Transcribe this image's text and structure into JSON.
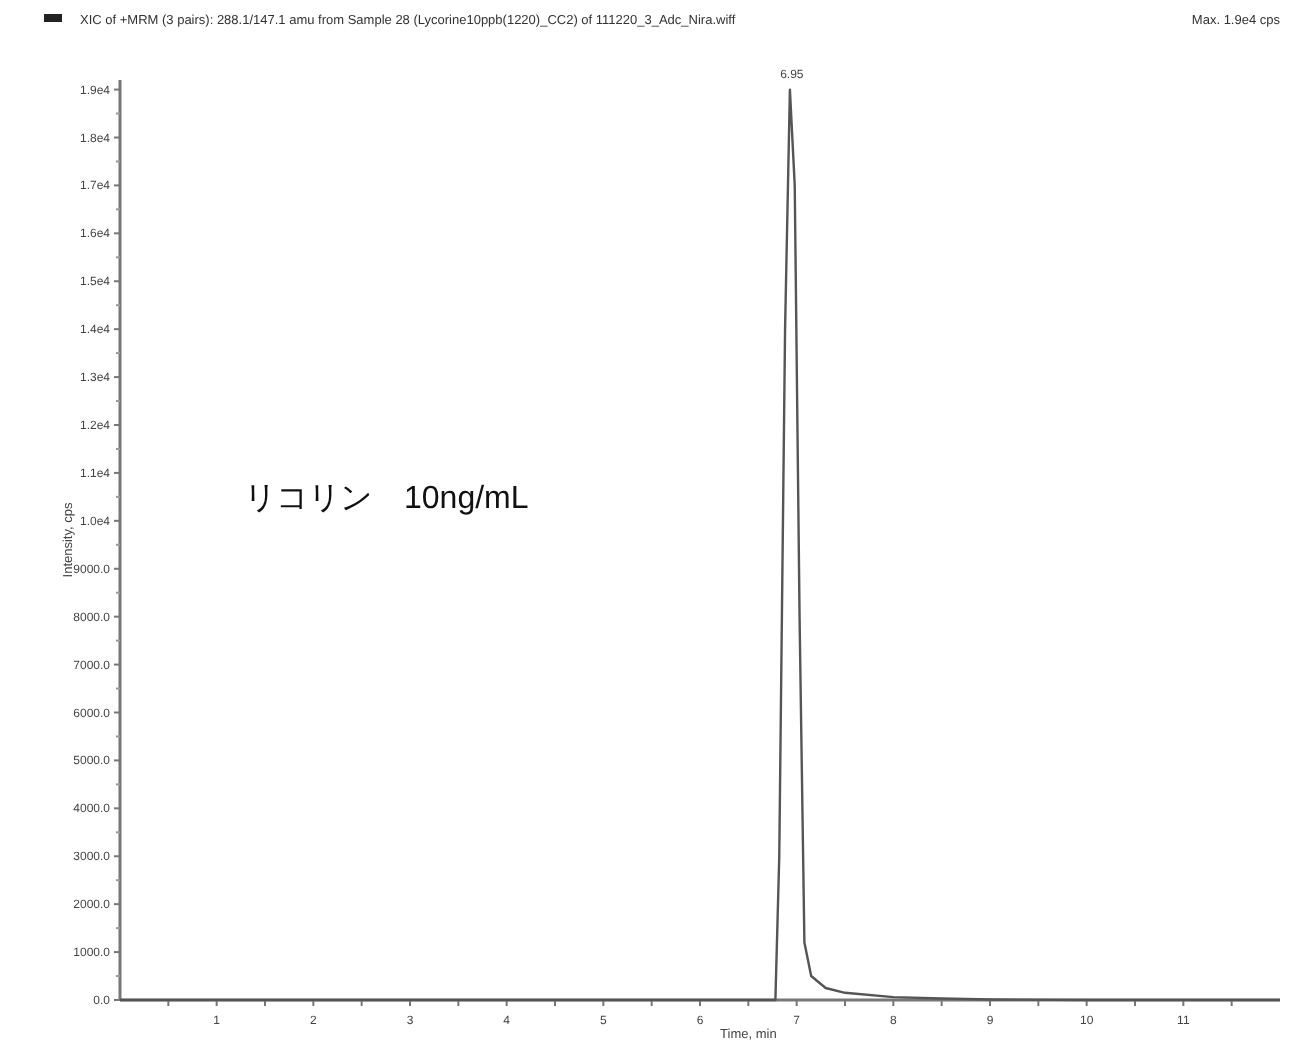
{
  "chart_data": {
    "type": "line",
    "title": "XIC of +MRM (3 pairs): 288.1/147.1 amu from Sample 28 (Lycorine10ppb(1220)_CC2) of 111220_3_Adc_Nira.wiff",
    "subtitle": "Max. 1.9e4 cps",
    "xlabel": "Time, min",
    "ylabel": "Intensity, cps",
    "annotations": [
      "リコリン　10ng/mL",
      {
        "text": "6.95",
        "x": 6.95,
        "y": 19000
      }
    ],
    "series": [
      {
        "color": "#555555",
        "x": [
          0,
          6.78,
          6.82,
          6.88,
          6.93,
          6.98,
          7.03,
          7.08,
          7.15,
          7.3,
          7.5,
          8.0,
          8.5,
          9.0,
          10.0,
          12.0
        ],
        "values": [
          0,
          0,
          3000,
          14000,
          19000,
          17000,
          8000,
          1200,
          500,
          250,
          150,
          60,
          30,
          10,
          0,
          0
        ]
      }
    ],
    "xlim": [
      0,
      12
    ],
    "ylim": [
      0,
      19200
    ],
    "xticks": [
      {
        "value": 0.5,
        "label": null
      },
      1,
      {
        "value": 1.5,
        "label": null
      },
      2,
      {
        "value": 2.5,
        "label": null
      },
      3,
      {
        "value": 3.5,
        "label": null
      },
      4,
      {
        "value": 4.5,
        "label": null
      },
      5,
      {
        "value": 5.5,
        "label": null
      },
      6,
      {
        "value": 6.5,
        "label": null
      },
      7,
      {
        "value": 7.5,
        "label": null
      },
      8,
      {
        "value": 8.5,
        "label": null
      },
      9,
      {
        "value": 9.5,
        "label": null
      },
      10,
      {
        "value": 10.5,
        "label": null
      },
      11,
      {
        "value": 11.5,
        "label": null
      }
    ],
    "yticks": [
      {
        "value": 0,
        "label": "0.0"
      },
      {
        "value": 1000,
        "label": "1000.0"
      },
      {
        "value": 2000,
        "label": "2000.0"
      },
      {
        "value": 3000,
        "label": "3000.0"
      },
      {
        "value": 4000,
        "label": "4000.0"
      },
      {
        "value": 5000,
        "label": "5000.0"
      },
      {
        "value": 6000,
        "label": "6000.0"
      },
      {
        "value": 7000,
        "label": "7000.0"
      },
      {
        "value": 8000,
        "label": "8000.0"
      },
      {
        "value": 9000,
        "label": "9000.0"
      },
      {
        "value": 10000,
        "label": "1.0e4"
      },
      {
        "value": 11000,
        "label": "1.1e4"
      },
      {
        "value": 12000,
        "label": "1.2e4"
      },
      {
        "value": 13000,
        "label": "1.3e4"
      },
      {
        "value": 14000,
        "label": "1.4e4"
      },
      {
        "value": 15000,
        "label": "1.5e4"
      },
      {
        "value": 16000,
        "label": "1.6e4"
      },
      {
        "value": 17000,
        "label": "1.7e4"
      },
      {
        "value": 18000,
        "label": "1.8e4"
      },
      {
        "value": 19000,
        "label": "1.9e4"
      }
    ],
    "grid": false,
    "marker": "none",
    "line_style": "solid"
  }
}
